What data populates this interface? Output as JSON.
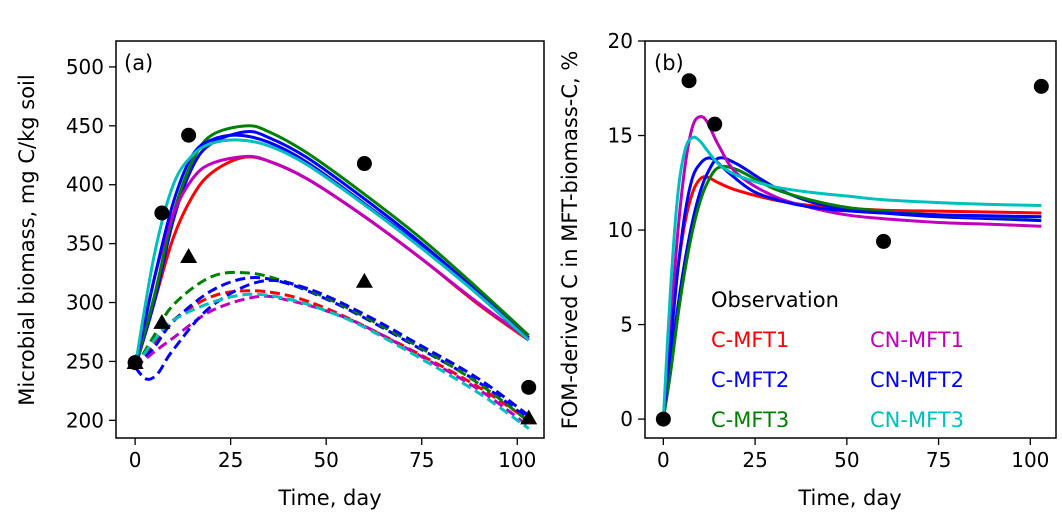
{
  "chart_data": [
    {
      "type": "line",
      "panel_label": "(a)",
      "xlabel": "Time, day",
      "ylabel": "Microbial biomass, mg C/kg soil",
      "xlim": [
        -5,
        107
      ],
      "ylim": [
        185,
        522
      ],
      "xticks": [
        0,
        25,
        50,
        75,
        100
      ],
      "yticks": [
        200,
        250,
        300,
        350,
        400,
        450,
        500
      ],
      "series": [
        {
          "name": "C-MFT1",
          "style": "solid",
          "color": "#ff0000",
          "x": [
            0,
            5,
            10,
            15,
            20,
            28,
            35,
            45,
            60,
            75,
            90,
            103
          ],
          "y": [
            245,
            300,
            355,
            390,
            410,
            423,
            420,
            405,
            373,
            337,
            298,
            268
          ]
        },
        {
          "name": "C-MFT2",
          "style": "solid",
          "color": "#0000ff",
          "x": [
            0,
            5,
            10,
            15,
            20,
            29,
            35,
            45,
            60,
            75,
            90,
            103
          ],
          "y": [
            245,
            300,
            370,
            415,
            435,
            445,
            440,
            423,
            388,
            350,
            308,
            270
          ]
        },
        {
          "name": "C-MFT3",
          "style": "solid",
          "color": "#008000",
          "x": [
            0,
            5,
            10,
            15,
            20,
            29,
            35,
            45,
            60,
            75,
            90,
            103
          ],
          "y": [
            245,
            305,
            375,
            420,
            442,
            450,
            445,
            427,
            392,
            354,
            311,
            272
          ]
        },
        {
          "name": "CN-MFT1",
          "style": "solid",
          "color": "#bf00bf",
          "x": [
            0,
            5,
            10,
            15,
            20,
            29,
            35,
            45,
            60,
            75,
            90,
            103
          ],
          "y": [
            245,
            320,
            375,
            405,
            418,
            424,
            420,
            405,
            373,
            337,
            299,
            269
          ]
        },
        {
          "name": "CN-MFT2",
          "style": "solid",
          "color": "#0000ff",
          "x": [
            0,
            5,
            10,
            15,
            20,
            27,
            35,
            45,
            60,
            75,
            90,
            103
          ],
          "y": [
            245,
            320,
            385,
            425,
            438,
            442,
            436,
            419,
            384,
            347,
            306,
            268
          ]
        },
        {
          "name": "CN-MFT3",
          "style": "solid",
          "color": "#00bfbf",
          "x": [
            0,
            5,
            10,
            15,
            20,
            27,
            35,
            45,
            60,
            75,
            90,
            103
          ],
          "y": [
            245,
            340,
            400,
            425,
            435,
            438,
            433,
            417,
            383,
            346,
            306,
            268
          ]
        },
        {
          "name": "C-MFT1",
          "style": "dashed",
          "color": "#ff0000",
          "x": [
            0,
            5,
            10,
            20,
            30,
            40,
            50,
            60,
            75,
            90,
            103
          ],
          "y": [
            245,
            265,
            285,
            305,
            310,
            306,
            295,
            280,
            255,
            228,
            200
          ]
        },
        {
          "name": "C-MFT2",
          "style": "dashed",
          "color": "#0000ff",
          "x": [
            0,
            5,
            10,
            20,
            30,
            40,
            50,
            60,
            75,
            90,
            103
          ],
          "y": [
            245,
            262,
            284,
            310,
            321,
            316,
            303,
            287,
            260,
            232,
            201
          ]
        },
        {
          "name": "C-MFT3",
          "style": "dashed",
          "color": "#008000",
          "x": [
            0,
            5,
            10,
            20,
            30,
            40,
            50,
            60,
            75,
            90,
            103
          ],
          "y": [
            245,
            272,
            298,
            322,
            325,
            317,
            304,
            288,
            261,
            231,
            199
          ]
        },
        {
          "name": "CN-MFT1",
          "style": "dashed",
          "color": "#bf00bf",
          "x": [
            0,
            5,
            10,
            20,
            32,
            40,
            50,
            60,
            75,
            90,
            103
          ],
          "y": [
            245,
            258,
            270,
            293,
            305,
            302,
            293,
            280,
            254,
            226,
            195
          ]
        },
        {
          "name": "CN-MFT2",
          "style": "dashed",
          "color": "#0000ff",
          "x": [
            0,
            3,
            6,
            10,
            20,
            33,
            45,
            60,
            75,
            90,
            103
          ],
          "y": [
            245,
            235,
            240,
            260,
            297,
            318,
            312,
            290,
            263,
            235,
            204
          ]
        },
        {
          "name": "CN-MFT3",
          "style": "dashed",
          "color": "#00bfbf",
          "x": [
            0,
            5,
            10,
            20,
            30,
            40,
            50,
            60,
            75,
            90,
            103
          ],
          "y": [
            245,
            268,
            285,
            300,
            307,
            303,
            293,
            279,
            252,
            223,
            193
          ]
        }
      ],
      "observations_circle": {
        "x": [
          0,
          7,
          14,
          60,
          103
        ],
        "y": [
          249,
          376,
          442,
          418,
          228
        ]
      },
      "observations_triangle": {
        "x": [
          0,
          7,
          14,
          60,
          103
        ],
        "y": [
          249,
          283,
          339,
          318,
          202
        ]
      }
    },
    {
      "type": "line",
      "panel_label": "(b)",
      "xlabel": "Time, day",
      "ylabel": "FOM-derived C in MFT-biomass-C, %",
      "xlim": [
        -5,
        107
      ],
      "ylim": [
        -1,
        20
      ],
      "xticks": [
        0,
        25,
        50,
        75,
        100
      ],
      "yticks": [
        0,
        5,
        10,
        15,
        20
      ],
      "series": [
        {
          "name": "C-MFT1",
          "color": "#ff0000",
          "x": [
            0,
            2,
            4,
            6,
            8,
            10,
            12,
            15,
            20,
            30,
            40,
            50,
            60,
            75,
            90,
            103
          ],
          "y": [
            0,
            4.5,
            8.0,
            10.5,
            12.0,
            12.7,
            12.8,
            12.5,
            12.1,
            11.6,
            11.3,
            11.15,
            11.05,
            11.0,
            10.95,
            10.9
          ]
        },
        {
          "name": "C-MFT2",
          "color": "#0000ff",
          "x": [
            0,
            2,
            4,
            6,
            8,
            10,
            12,
            15,
            20,
            30,
            40,
            50,
            60,
            75,
            90,
            103
          ],
          "y": [
            0,
            3.0,
            6.0,
            8.5,
            10.5,
            12.0,
            13.0,
            13.8,
            13.5,
            12.3,
            11.5,
            11.1,
            10.9,
            10.7,
            10.6,
            10.5
          ]
        },
        {
          "name": "C-MFT3",
          "color": "#008000",
          "x": [
            0,
            2,
            4,
            6,
            8,
            10,
            12,
            15,
            20,
            30,
            40,
            50,
            60,
            75,
            90,
            103
          ],
          "y": [
            0,
            2.5,
            5.5,
            8.0,
            10.0,
            11.5,
            12.5,
            13.3,
            13.2,
            12.2,
            11.6,
            11.2,
            11.0,
            10.8,
            10.7,
            10.7
          ]
        },
        {
          "name": "CN-MFT1",
          "color": "#bf00bf",
          "x": [
            0,
            2,
            4,
            6,
            8,
            10,
            12,
            15,
            20,
            30,
            40,
            50,
            60,
            75,
            90,
            103
          ],
          "y": [
            0,
            5.0,
            10.0,
            13.5,
            15.5,
            16.0,
            15.7,
            14.5,
            13.0,
            11.8,
            11.2,
            10.8,
            10.6,
            10.4,
            10.3,
            10.2
          ]
        },
        {
          "name": "CN-MFT2",
          "color": "#0000ff",
          "x": [
            0,
            2,
            4,
            6,
            8,
            10,
            12,
            14,
            18,
            25,
            35,
            45,
            60,
            75,
            90,
            103
          ],
          "y": [
            0,
            4.0,
            8.0,
            11.0,
            12.8,
            13.5,
            13.8,
            13.7,
            13.0,
            12.0,
            11.4,
            11.1,
            10.9,
            10.8,
            10.75,
            10.7
          ]
        },
        {
          "name": "CN-MFT3",
          "color": "#00bfbf",
          "x": [
            0,
            2,
            4,
            6,
            8,
            10,
            12,
            15,
            20,
            30,
            40,
            50,
            60,
            75,
            90,
            103
          ],
          "y": [
            0,
            7.0,
            12.0,
            14.3,
            14.9,
            14.7,
            14.2,
            13.5,
            12.9,
            12.3,
            12.0,
            11.8,
            11.6,
            11.45,
            11.35,
            11.3
          ]
        }
      ],
      "observations_circle": {
        "x": [
          0,
          7,
          14,
          60,
          103
        ],
        "y": [
          0,
          17.9,
          15.6,
          9.4,
          17.6
        ]
      }
    }
  ],
  "legend": {
    "observation": "Observation",
    "items": [
      {
        "label": "C-MFT1",
        "color": "#ff0000"
      },
      {
        "label": "CN-MFT1",
        "color": "#bf00bf"
      },
      {
        "label": "C-MFT2",
        "color": "#0000ff"
      },
      {
        "label": "CN-MFT2",
        "color": "#0000ff"
      },
      {
        "label": "C-MFT3",
        "color": "#008000"
      },
      {
        "label": "CN-MFT3",
        "color": "#00bfbf"
      }
    ]
  }
}
